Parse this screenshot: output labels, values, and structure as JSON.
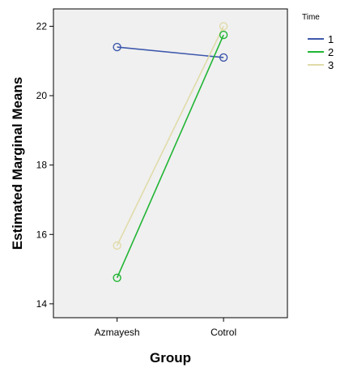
{
  "chart_data": {
    "type": "line",
    "xlabel": "Group",
    "ylabel": "Estimated Marginal Means",
    "categories": [
      "Azmayesh",
      "Cotrol"
    ],
    "ylim": [
      13.6,
      22.5
    ],
    "yticks": [
      14,
      16,
      18,
      20,
      22
    ],
    "grid": false,
    "legend": {
      "title": "Time",
      "placement": "top-right"
    },
    "plot_background": "#f0f0f0",
    "series": [
      {
        "name": "1",
        "color": "#3e58ac",
        "values": [
          21.4,
          21.1
        ]
      },
      {
        "name": "2",
        "color": "#21b534",
        "values": [
          14.75,
          21.75
        ]
      },
      {
        "name": "3",
        "color": "#e0dba9",
        "values": [
          15.68,
          22.0
        ]
      }
    ]
  }
}
